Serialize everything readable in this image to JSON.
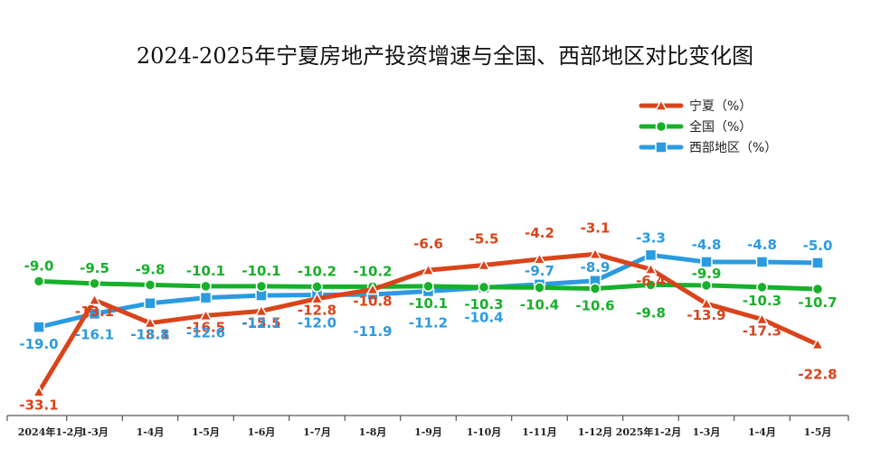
{
  "chart_data": {
    "type": "line",
    "title": "2024-2025年宁夏房地产投资增速与全国、西部地区对比变化图",
    "xlabel": "",
    "ylabel": "",
    "categories": [
      "2024年1-2月",
      "1-3月",
      "1-4月",
      "1-5月",
      "1-6月",
      "1-7月",
      "1-8月",
      "1-9月",
      "1-10月",
      "1-11月",
      "1-12月",
      "2025年1-2月",
      "1-3月",
      "1-4月",
      "1-5月"
    ],
    "ylim": [
      -36,
      4
    ],
    "grid": false,
    "legend_position": "top-right",
    "series": [
      {
        "name": "宁夏（%）",
        "marker": "triangle",
        "color": "#d9441a",
        "values": [
          -33.1,
          -13.1,
          -18.1,
          -16.5,
          -15.5,
          -12.8,
          -10.8,
          -6.6,
          -5.5,
          -4.2,
          -3.1,
          -6.4,
          -13.9,
          -17.3,
          -22.8
        ],
        "label_dy": [
          20,
          18,
          18,
          18,
          18,
          18,
          18,
          -24,
          -24,
          -24,
          -24,
          18,
          18,
          18,
          38
        ]
      },
      {
        "name": "全国（%）",
        "marker": "circle",
        "color": "#17b02a",
        "values": [
          -9.0,
          -9.5,
          -9.8,
          -10.1,
          -10.1,
          -10.2,
          -10.2,
          -10.1,
          -10.3,
          -10.4,
          -10.6,
          -9.8,
          -9.9,
          -10.3,
          -10.7
        ],
        "label_dy": [
          -12,
          -12,
          -12,
          -12,
          -12,
          -12,
          -12,
          24,
          24,
          24,
          24,
          36,
          -8,
          20,
          20
        ]
      },
      {
        "name": "西部地区（%）",
        "marker": "square",
        "color": "#2b9be0",
        "values": [
          -19.0,
          -16.1,
          -13.8,
          -12.6,
          -12.1,
          -12.0,
          -11.9,
          -11.2,
          -10.4,
          -9.7,
          -8.9,
          -3.3,
          -4.8,
          -4.8,
          -5.0
        ],
        "label_dy": [
          24,
          28,
          40,
          44,
          36,
          36,
          46,
          40,
          38,
          -10,
          -10,
          -14,
          -14,
          -14,
          -14
        ]
      }
    ]
  }
}
